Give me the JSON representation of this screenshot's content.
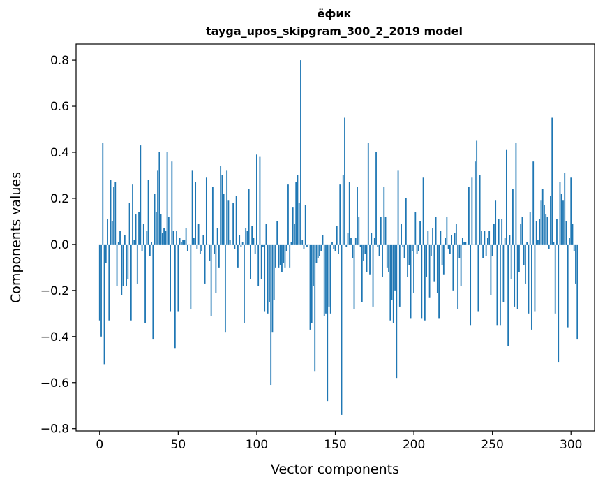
{
  "chart_data": {
    "type": "bar",
    "title": "ёфик",
    "subtitle": "tayga_upos_skipgram_300_2_2019 model",
    "xlabel": "Vector components",
    "ylabel": "Components values",
    "xlim": [
      -15,
      315
    ],
    "ylim": [
      -0.81,
      0.87
    ],
    "xticks": [
      0,
      50,
      100,
      150,
      200,
      250,
      300
    ],
    "xtick_labels": [
      "0",
      "50",
      "100",
      "150",
      "200",
      "250",
      "300"
    ],
    "yticks": [
      -0.8,
      -0.6,
      -0.4,
      -0.2,
      0.0,
      0.2,
      0.4,
      0.6,
      0.8
    ],
    "ytick_labels": [
      "−0.8",
      "−0.6",
      "−0.4",
      "−0.2",
      "0.0",
      "0.2",
      "0.4",
      "0.6",
      "0.8"
    ],
    "bar_color": "#1f77b4",
    "grid": false,
    "values": [
      -0.33,
      -0.4,
      0.44,
      -0.52,
      -0.08,
      0.11,
      -0.33,
      0.28,
      0.1,
      0.25,
      0.27,
      -0.18,
      0.01,
      0.06,
      -0.22,
      -0.18,
      0.04,
      -0.18,
      -0.15,
      0.18,
      -0.33,
      0.26,
      0.02,
      0.13,
      -0.17,
      0.14,
      0.43,
      -0.03,
      0.09,
      -0.34,
      0.06,
      0.28,
      -0.05,
      0.01,
      -0.41,
      0.22,
      0.14,
      0.32,
      0.4,
      0.13,
      0.05,
      0.07,
      0.06,
      0.4,
      0.12,
      -0.29,
      0.36,
      0.06,
      -0.45,
      0.06,
      -0.29,
      0.03,
      0.01,
      0.02,
      0.02,
      0.07,
      -0.03,
      0.0,
      -0.28,
      0.32,
      0.03,
      0.27,
      -0.02,
      0.09,
      -0.04,
      -0.03,
      0.04,
      -0.17,
      0.29,
      0.0,
      -0.07,
      -0.31,
      0.25,
      -0.04,
      -0.21,
      0.07,
      -0.1,
      0.34,
      0.3,
      0.22,
      -0.38,
      0.32,
      0.19,
      0.02,
      0.0,
      0.18,
      -0.02,
      0.21,
      -0.1,
      0.04,
      -0.01,
      0.01,
      -0.34,
      0.07,
      0.06,
      0.24,
      -0.15,
      0.08,
      0.03,
      -0.04,
      0.39,
      -0.18,
      0.38,
      -0.15,
      -0.01,
      -0.29,
      0.09,
      -0.3,
      -0.25,
      -0.61,
      -0.38,
      -0.24,
      -0.1,
      0.1,
      -0.1,
      -0.09,
      -0.12,
      -0.08,
      -0.1,
      -0.03,
      0.26,
      -0.1,
      0.01,
      0.16,
      0.09,
      0.27,
      0.3,
      0.18,
      0.8,
      0.02,
      -0.02,
      0.17,
      -0.01,
      0.0,
      -0.37,
      -0.34,
      -0.18,
      -0.55,
      -0.08,
      -0.06,
      -0.05,
      -0.03,
      0.04,
      -0.31,
      -0.3,
      -0.68,
      -0.27,
      -0.3,
      0.01,
      -0.02,
      -0.03,
      0.08,
      -0.04,
      0.26,
      -0.74,
      0.3,
      0.55,
      -0.01,
      0.05,
      0.27,
      0.03,
      -0.06,
      -0.28,
      0.03,
      0.25,
      0.12,
      -0.01,
      -0.25,
      -0.07,
      -0.04,
      -0.12,
      0.44,
      -0.13,
      0.05,
      -0.27,
      0.03,
      0.4,
      -0.01,
      -0.05,
      0.12,
      -0.14,
      0.25,
      0.12,
      -0.1,
      -0.12,
      -0.33,
      -0.24,
      -0.34,
      -0.2,
      -0.58,
      0.32,
      -0.27,
      0.09,
      -0.01,
      -0.06,
      0.2,
      -0.14,
      -0.09,
      -0.32,
      -0.03,
      -0.21,
      0.14,
      -0.04,
      -0.03,
      0.1,
      -0.32,
      0.29,
      -0.33,
      -0.14,
      0.06,
      -0.23,
      -0.05,
      0.07,
      -0.16,
      0.12,
      -0.21,
      -0.32,
      0.06,
      -0.09,
      -0.13,
      0.03,
      0.12,
      -0.02,
      -0.04,
      0.04,
      -0.2,
      0.05,
      0.09,
      -0.28,
      -0.06,
      -0.18,
      0.03,
      0.01,
      0.01,
      0.0,
      0.25,
      -0.35,
      0.29,
      0.0,
      0.36,
      0.45,
      -0.29,
      0.3,
      0.06,
      -0.06,
      0.06,
      -0.05,
      0.03,
      0.06,
      -0.22,
      -0.05,
      0.09,
      0.19,
      -0.35,
      0.11,
      -0.35,
      0.11,
      -0.25,
      0.03,
      0.41,
      -0.44,
      0.04,
      -0.15,
      0.24,
      -0.27,
      0.44,
      -0.28,
      -0.12,
      0.09,
      0.12,
      -0.09,
      -0.17,
      0.01,
      -0.3,
      0.14,
      -0.37,
      0.36,
      -0.29,
      0.1,
      0.02,
      0.11,
      0.19,
      0.24,
      0.17,
      0.13,
      0.12,
      -0.02,
      0.21,
      0.55,
      0.01,
      -0.3,
      0.11,
      -0.51,
      0.27,
      0.22,
      0.19,
      0.31,
      0.1,
      -0.36,
      0.03,
      0.29,
      0.09,
      -0.03,
      -0.17,
      -0.41
    ]
  }
}
